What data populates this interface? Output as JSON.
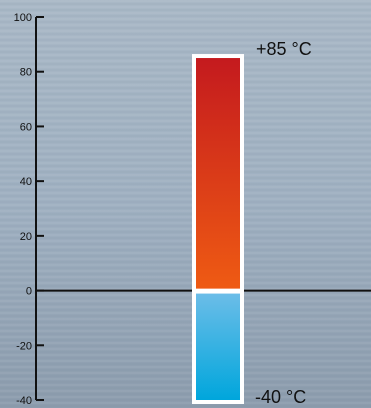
{
  "chart_data": {
    "type": "bar",
    "y_ticks": [
      100,
      80,
      60,
      40,
      20,
      0,
      -20,
      -40
    ],
    "ylim": [
      -40,
      100
    ],
    "range": {
      "min": -40,
      "max": 85
    },
    "labels": {
      "max": "+85 °C",
      "min": "-40 °C"
    },
    "colors": {
      "background": "#9aaabb",
      "warm_top": "#c41a1e",
      "warm_bottom": "#ef5b13",
      "cold_top": "#6bbde8",
      "cold_bottom": "#00a6dc",
      "frame": "#ffffff",
      "axis": "#111111"
    }
  }
}
